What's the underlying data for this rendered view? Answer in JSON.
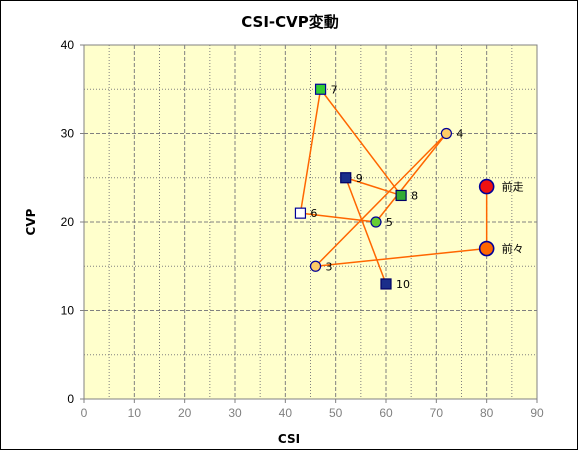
{
  "chart_data": {
    "type": "scatter",
    "title": "CSI-CVP変動",
    "xlabel": "CSI",
    "ylabel": "CVP",
    "xlim": [
      0,
      90
    ],
    "ylim": [
      0,
      40
    ],
    "x_ticks": [
      "0",
      "10",
      "20",
      "30",
      "40",
      "50",
      "60",
      "70",
      "80",
      "90"
    ],
    "y_ticks": [
      "0",
      "10",
      "20",
      "30",
      "40"
    ],
    "grid": true,
    "plot_background": "#ffffcc",
    "grid_color": "#808080",
    "line_color": "#ff6600",
    "points": [
      {
        "label": "3",
        "x": 46,
        "y": 15,
        "marker": "circle",
        "fill": "#ffcc66",
        "stroke": "#000099"
      },
      {
        "label": "4",
        "x": 72,
        "y": 30,
        "marker": "circle",
        "fill": "#ffcc66",
        "stroke": "#000099"
      },
      {
        "label": "5",
        "x": 58,
        "y": 20,
        "marker": "circle",
        "fill": "#66cc33",
        "stroke": "#000099"
      },
      {
        "label": "6",
        "x": 43,
        "y": 21,
        "marker": "square",
        "fill": "#ffffff",
        "stroke": "#000099"
      },
      {
        "label": "7",
        "x": 47,
        "y": 35,
        "marker": "square",
        "fill": "#33cc33",
        "stroke": "#000099"
      },
      {
        "label": "8",
        "x": 63,
        "y": 23,
        "marker": "square",
        "fill": "#33aa33",
        "stroke": "#000066"
      },
      {
        "label": "9",
        "x": 52,
        "y": 25,
        "marker": "square",
        "fill": "#1a2e8a",
        "stroke": "#000066"
      },
      {
        "label": "10",
        "x": 60,
        "y": 13,
        "marker": "square",
        "fill": "#1a2e8a",
        "stroke": "#000066"
      },
      {
        "label": "前々",
        "x": 80,
        "y": 17,
        "marker": "circle-large",
        "fill": "#ff6600",
        "stroke": "#000099"
      },
      {
        "label": "前走",
        "x": 80,
        "y": 24,
        "marker": "circle-large",
        "fill": "#ee1111",
        "stroke": "#000099"
      }
    ],
    "connection_order": [
      "10",
      "9",
      "8",
      "7",
      "6",
      "5",
      "4",
      "3",
      "前々",
      "前走"
    ]
  }
}
